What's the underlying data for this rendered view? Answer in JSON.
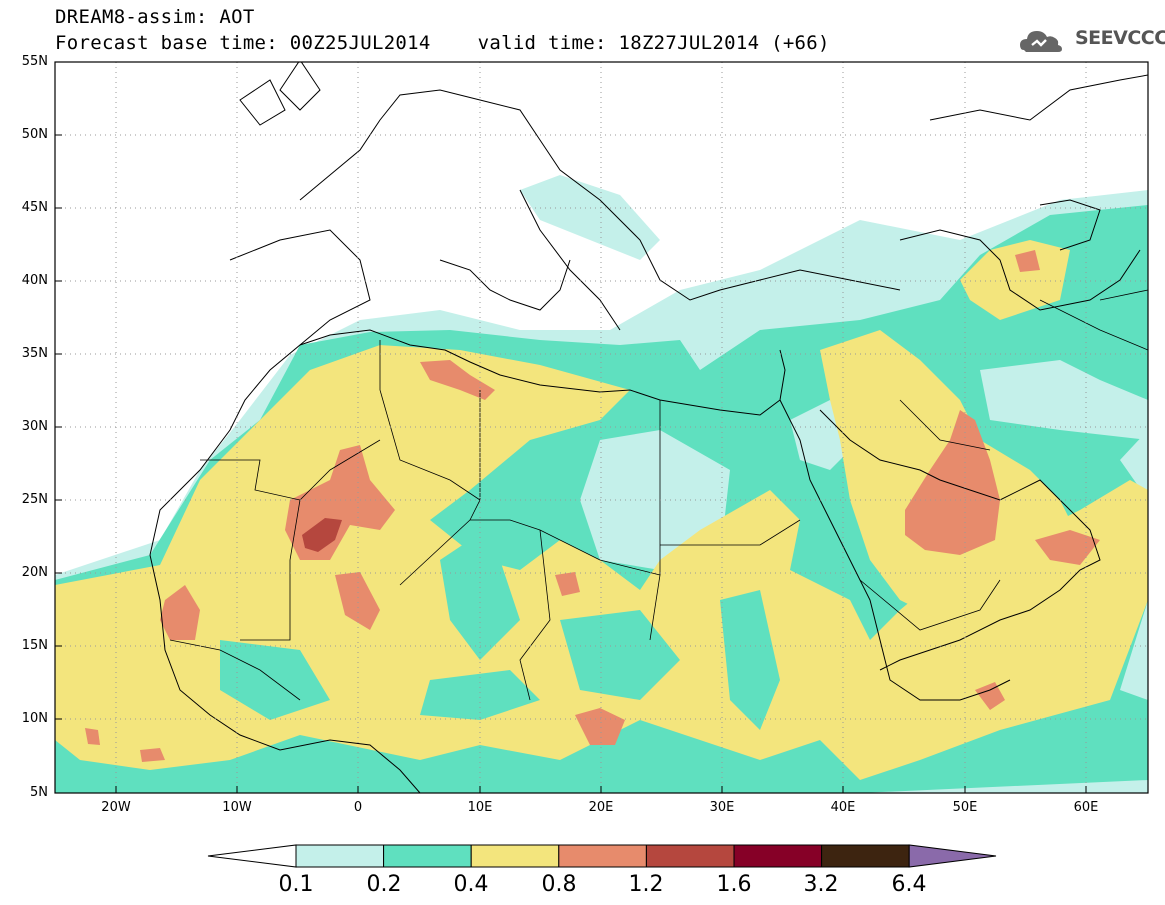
{
  "header": {
    "line1": "DREAM8-assim: AOT",
    "line2": "Forecast base time: 00Z25JUL2014    valid time: 18Z27JUL2014 (+66)"
  },
  "logo": {
    "text": "SEEVCCC",
    "icon": "cloud-logo-icon"
  },
  "map": {
    "variable": "AOT",
    "lat_range": [
      5,
      55
    ],
    "lon_range": [
      -25,
      65
    ],
    "lat_labels": [
      "55N",
      "50N",
      "45N",
      "40N",
      "35N",
      "30N",
      "25N",
      "20N",
      "15N",
      "10N",
      "5N"
    ],
    "lon_labels": [
      "20W",
      "10W",
      "0",
      "10E",
      "20E",
      "30E",
      "40E",
      "50E",
      "60E"
    ],
    "grid": "dotted",
    "colors": {
      "c1": "#c4f0ea",
      "c2": "#5fe0bf",
      "c3": "#f3e57d",
      "c4": "#e78b6c",
      "c5": "#b5473e",
      "c6": "#860027",
      "c7": "#3d2410",
      "c8": "#8a6aaa"
    }
  },
  "colorbar": {
    "labels": [
      "0.1",
      "0.2",
      "0.4",
      "0.8",
      "1.2",
      "1.6",
      "3.2",
      "6.4"
    ],
    "colors": [
      "#c4f0ea",
      "#5fe0bf",
      "#f3e57d",
      "#e78b6c",
      "#b5473e",
      "#860027",
      "#3d2410"
    ],
    "low_extend_color": "#ffffff",
    "high_extend_color": "#8a6aaa"
  }
}
